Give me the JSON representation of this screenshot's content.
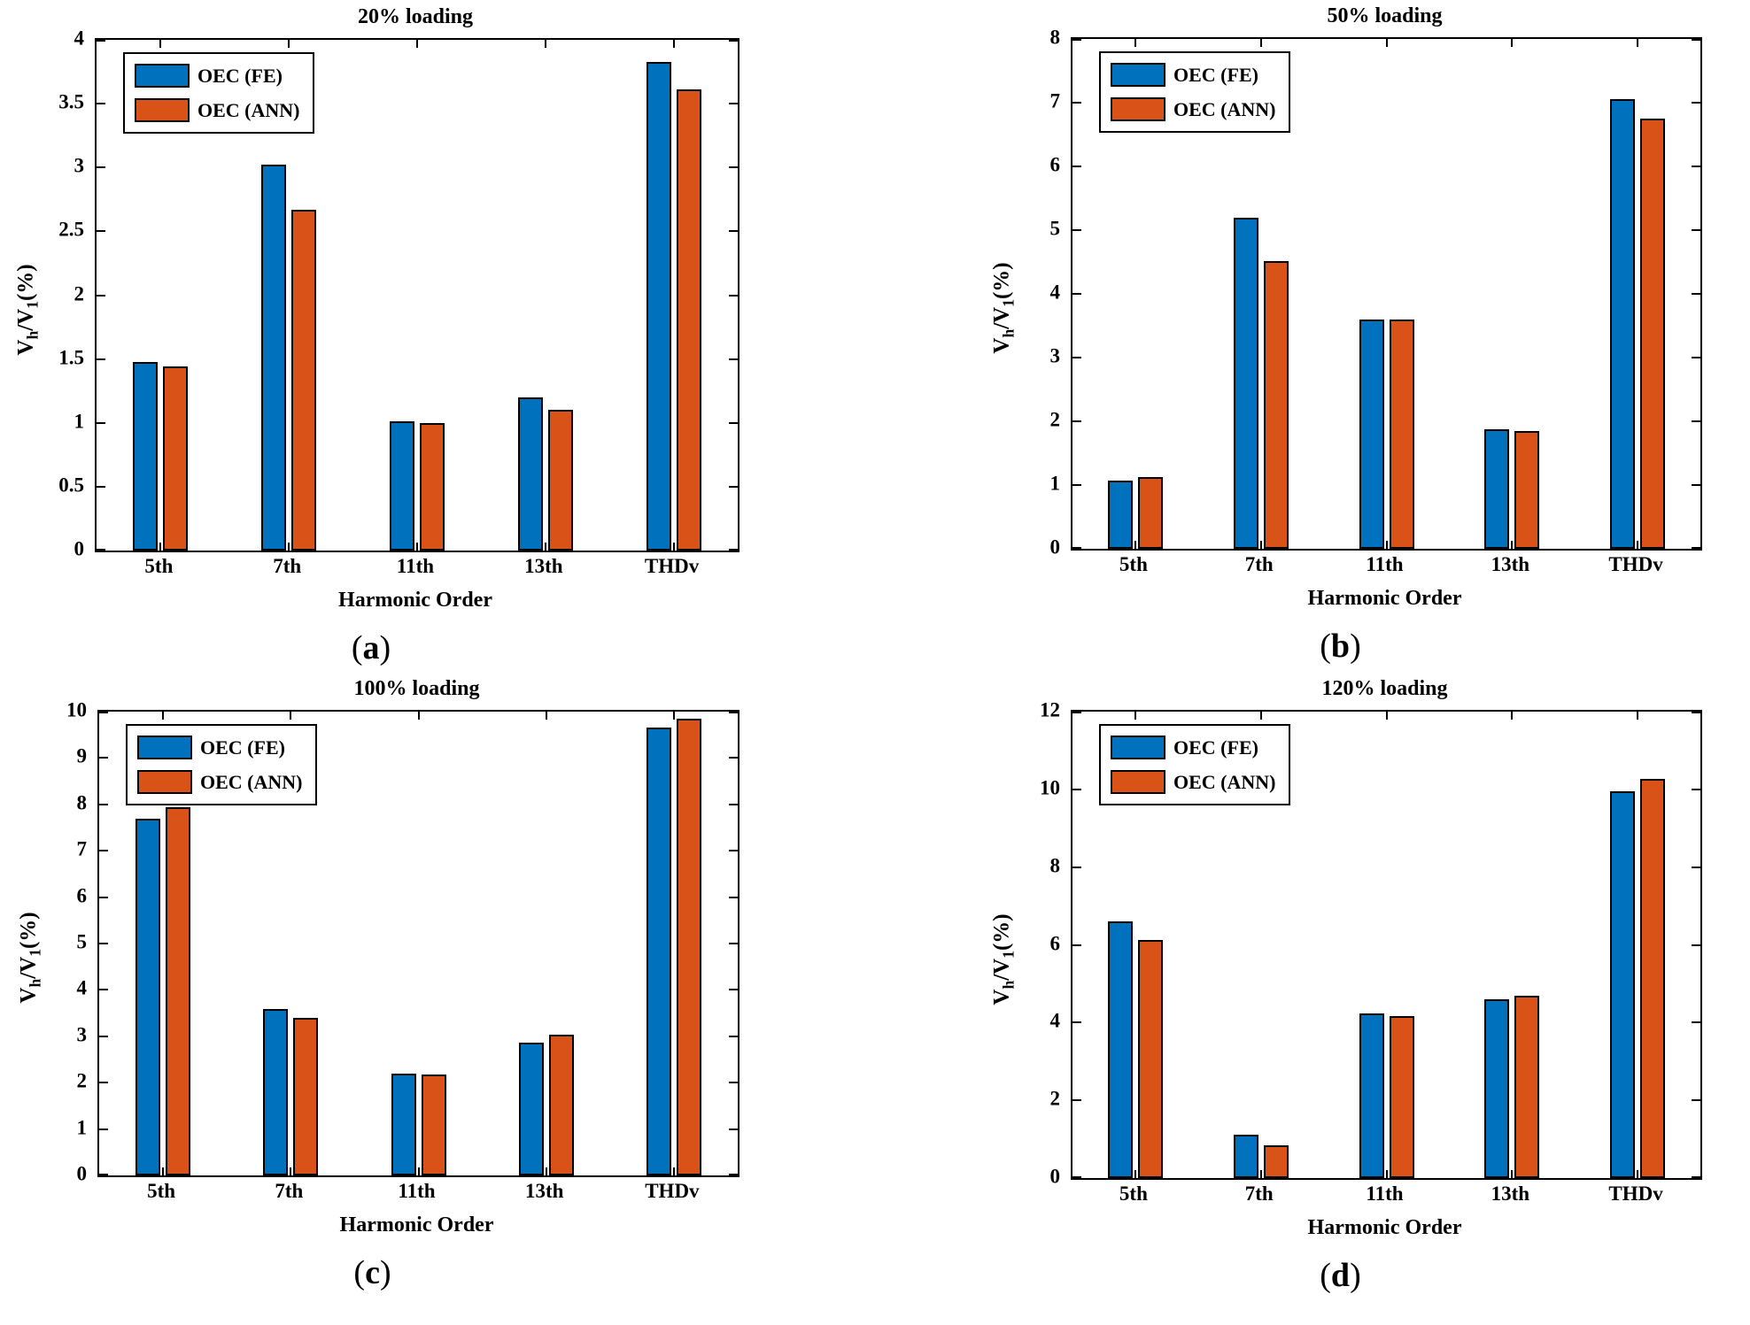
{
  "figure": {
    "background": "#ffffff",
    "axis_color": "#000000",
    "series_colors": {
      "fe": "#0072BD",
      "ann": "#D95319"
    }
  },
  "chart_data": [
    {
      "id": "a",
      "type": "bar",
      "title": "20% loading",
      "sublabel": "a",
      "xlabel": "Harmonic Order",
      "ylabel": "V_h/V_1(%)",
      "categories": [
        "5th",
        "7th",
        "11th",
        "13th",
        "THDv"
      ],
      "series": [
        {
          "name": "OEC (FE)",
          "color": "#0072BD",
          "values": [
            1.48,
            3.02,
            1.01,
            1.2,
            3.83
          ]
        },
        {
          "name": "OEC (ANN)",
          "color": "#D95319",
          "values": [
            1.44,
            2.67,
            1.0,
            1.1,
            3.61
          ]
        }
      ],
      "ylim": [
        0,
        4
      ],
      "ytick_step": 0.5,
      "grid": false,
      "legend_position": "top-left"
    },
    {
      "id": "b",
      "type": "bar",
      "title": "50% loading",
      "sublabel": "b",
      "xlabel": "Harmonic Order",
      "ylabel": "V_h/V_1(%)",
      "categories": [
        "5th",
        "7th",
        "11th",
        "13th",
        "THDv"
      ],
      "series": [
        {
          "name": "OEC (FE)",
          "color": "#0072BD",
          "values": [
            1.07,
            5.2,
            3.6,
            1.88,
            7.05
          ]
        },
        {
          "name": "OEC (ANN)",
          "color": "#D95319",
          "values": [
            1.12,
            4.52,
            3.6,
            1.85,
            6.75
          ]
        }
      ],
      "ylim": [
        0,
        8
      ],
      "ytick_step": 1,
      "grid": false,
      "legend_position": "top-left"
    },
    {
      "id": "c",
      "type": "bar",
      "title": "100% loading",
      "sublabel": "c",
      "xlabel": "Harmonic Order",
      "ylabel": "V_h/V_1(%)",
      "categories": [
        "5th",
        "7th",
        "11th",
        "13th",
        "THDv"
      ],
      "series": [
        {
          "name": "OEC (FE)",
          "color": "#0072BD",
          "values": [
            7.7,
            3.58,
            2.2,
            2.87,
            9.65
          ]
        },
        {
          "name": "OEC (ANN)",
          "color": "#D95319",
          "values": [
            7.93,
            3.4,
            2.18,
            3.03,
            9.85
          ]
        }
      ],
      "ylim": [
        0,
        10
      ],
      "ytick_step": 1,
      "grid": false,
      "legend_position": "top-left"
    },
    {
      "id": "d",
      "type": "bar",
      "title": "120% loading",
      "sublabel": "d",
      "xlabel": "Harmonic Order",
      "ylabel": "V_h/V_1(%)",
      "categories": [
        "5th",
        "7th",
        "11th",
        "13th",
        "THDv"
      ],
      "series": [
        {
          "name": "OEC (FE)",
          "color": "#0072BD",
          "values": [
            6.6,
            1.12,
            4.24,
            4.6,
            9.95
          ]
        },
        {
          "name": "OEC (ANN)",
          "color": "#D95319",
          "values": [
            6.12,
            0.85,
            4.17,
            4.68,
            10.28
          ]
        }
      ],
      "ylim": [
        0,
        12
      ],
      "ytick_step": 2,
      "grid": false,
      "legend_position": "top-left"
    }
  ]
}
